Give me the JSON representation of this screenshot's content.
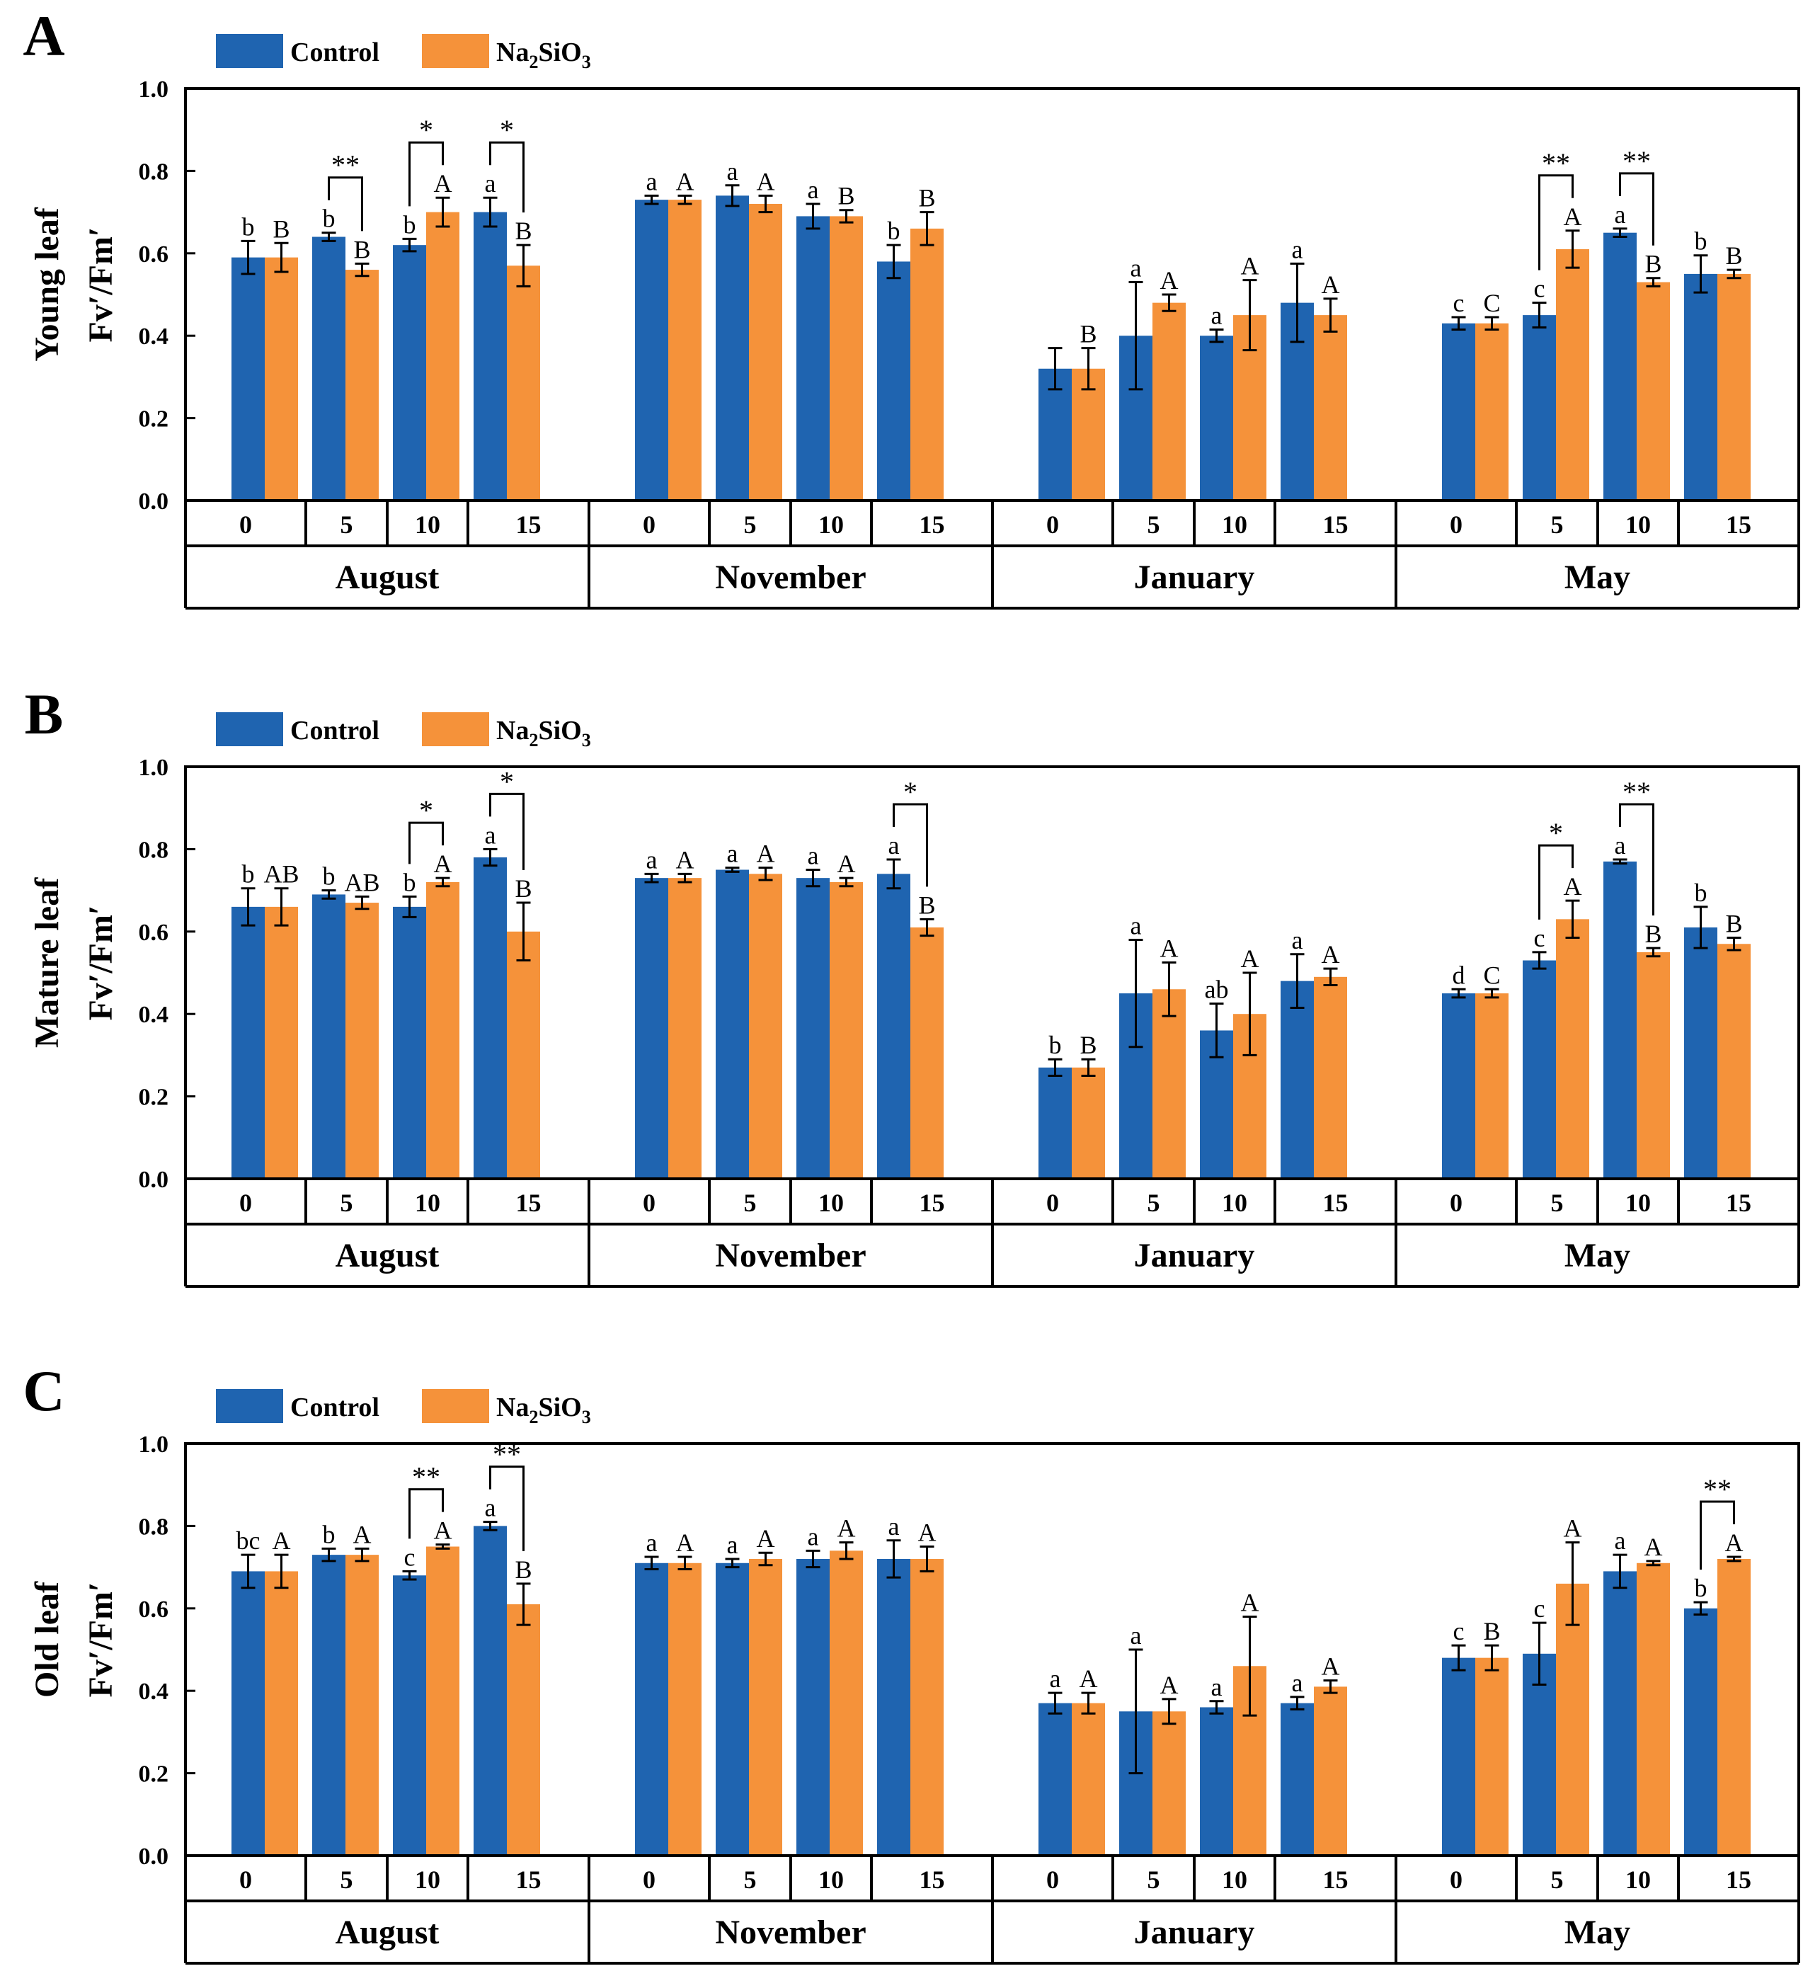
{
  "legend": {
    "control": "Control",
    "treatment_base": "Na",
    "treatment_sub1": "2",
    "treatment_mid": "SiO",
    "treatment_sub2": "3"
  },
  "colors": {
    "control": "#1F64B0",
    "treatment": "#F5923A"
  },
  "months": [
    "August",
    "November",
    "January",
    "May"
  ],
  "day_labels": [
    "0",
    "5",
    "10",
    "15"
  ],
  "panels": [
    {
      "letter": "A",
      "ylabel_top": "Young leaf",
      "ylabel_bottom": "Fv′/Fm′",
      "yticks": [
        "0.0",
        "0.2",
        "0.4",
        "0.6",
        "0.8",
        "1.0"
      ],
      "chart_data": {
        "type": "bar",
        "ylim": [
          0,
          1.0
        ],
        "series": [
          {
            "name": "Control",
            "values": [
              [
                0.59,
                0.64,
                0.62,
                0.7
              ],
              [
                0.73,
                0.74,
                0.69,
                0.58
              ],
              [
                0.32,
                0.4,
                0.4,
                0.48
              ],
              [
                0.43,
                0.45,
                0.65,
                0.55
              ]
            ],
            "errors": [
              [
                0.04,
                0.01,
                0.015,
                0.035
              ],
              [
                0.01,
                0.025,
                0.03,
                0.04
              ],
              [
                0.05,
                0.13,
                0.015,
                0.095
              ],
              [
                0.015,
                0.03,
                0.01,
                0.045
              ]
            ],
            "letters": [
              [
                "b",
                "b",
                "b",
                "a"
              ],
              [
                "a",
                "a",
                "a",
                "b"
              ],
              [
                "",
                "a",
                "a",
                "a"
              ],
              [
                "c",
                "c",
                "a",
                "b"
              ]
            ]
          },
          {
            "name": "Na2SiO3",
            "values": [
              [
                0.59,
                0.56,
                0.7,
                0.57
              ],
              [
                0.73,
                0.72,
                0.69,
                0.66
              ],
              [
                0.32,
                0.48,
                0.45,
                0.45
              ],
              [
                0.43,
                0.61,
                0.53,
                0.55
              ]
            ],
            "errors": [
              [
                0.035,
                0.015,
                0.035,
                0.05
              ],
              [
                0.01,
                0.02,
                0.015,
                0.04
              ],
              [
                0.05,
                0.02,
                0.085,
                0.04
              ],
              [
                0.015,
                0.045,
                0.01,
                0.01
              ]
            ],
            "letters": [
              [
                "B",
                "B",
                "A",
                "B"
              ],
              [
                "A",
                "A",
                "B",
                "B"
              ],
              [
                "B",
                "A",
                "A",
                "A"
              ],
              [
                "C",
                "A",
                "B",
                "B"
              ]
            ]
          }
        ],
        "significance": [
          {
            "month": 0,
            "day": 1,
            "label": "**"
          },
          {
            "month": 0,
            "day": 2,
            "label": "*"
          },
          {
            "month": 0,
            "day": 3,
            "label": "*"
          },
          {
            "month": 3,
            "day": 1,
            "label": "**"
          },
          {
            "month": 3,
            "day": 2,
            "label": "**"
          }
        ]
      }
    },
    {
      "letter": "B",
      "ylabel_top": "Mature leaf",
      "ylabel_bottom": "Fv′/Fm′",
      "yticks": [
        "0.0",
        "0.2",
        "0.4",
        "0.6",
        "0.8",
        "1.0"
      ],
      "chart_data": {
        "type": "bar",
        "ylim": [
          0,
          1.0
        ],
        "series": [
          {
            "name": "Control",
            "values": [
              [
                0.66,
                0.69,
                0.66,
                0.78
              ],
              [
                0.73,
                0.75,
                0.73,
                0.74
              ],
              [
                0.27,
                0.45,
                0.36,
                0.48
              ],
              [
                0.45,
                0.53,
                0.77,
                0.61
              ]
            ],
            "errors": [
              [
                0.045,
                0.01,
                0.025,
                0.02
              ],
              [
                0.01,
                0.005,
                0.02,
                0.035
              ],
              [
                0.02,
                0.13,
                0.065,
                0.065
              ],
              [
                0.01,
                0.02,
                0.005,
                0.05
              ]
            ],
            "letters": [
              [
                "b",
                "b",
                "b",
                "a"
              ],
              [
                "a",
                "a",
                "a",
                "a"
              ],
              [
                "b",
                "a",
                "ab",
                "a"
              ],
              [
                "d",
                "c",
                "a",
                "b"
              ]
            ]
          },
          {
            "name": "Na2SiO3",
            "values": [
              [
                0.66,
                0.67,
                0.72,
                0.6
              ],
              [
                0.73,
                0.74,
                0.72,
                0.61
              ],
              [
                0.27,
                0.46,
                0.4,
                0.49
              ],
              [
                0.45,
                0.63,
                0.55,
                0.57
              ]
            ],
            "errors": [
              [
                0.045,
                0.015,
                0.01,
                0.07
              ],
              [
                0.01,
                0.015,
                0.01,
                0.02
              ],
              [
                0.02,
                0.065,
                0.1,
                0.02
              ],
              [
                0.01,
                0.045,
                0.01,
                0.015
              ]
            ],
            "letters": [
              [
                "AB",
                "AB",
                "A",
                "B"
              ],
              [
                "A",
                "A",
                "A",
                "B"
              ],
              [
                "B",
                "A",
                "A",
                "A"
              ],
              [
                "C",
                "A",
                "B",
                "B"
              ]
            ]
          }
        ],
        "significance": [
          {
            "month": 0,
            "day": 2,
            "label": "*"
          },
          {
            "month": 0,
            "day": 3,
            "label": "*"
          },
          {
            "month": 1,
            "day": 3,
            "label": "*"
          },
          {
            "month": 3,
            "day": 1,
            "label": "*"
          },
          {
            "month": 3,
            "day": 2,
            "label": "**"
          }
        ]
      }
    },
    {
      "letter": "C",
      "ylabel_top": "Old leaf",
      "ylabel_bottom": "Fv′/Fm′",
      "yticks": [
        "0.0",
        "0.2",
        "0.4",
        "0.6",
        "0.8",
        "1.0"
      ],
      "chart_data": {
        "type": "bar",
        "ylim": [
          0,
          1.0
        ],
        "series": [
          {
            "name": "Control",
            "values": [
              [
                0.69,
                0.73,
                0.68,
                0.8
              ],
              [
                0.71,
                0.71,
                0.72,
                0.72
              ],
              [
                0.37,
                0.35,
                0.36,
                0.37
              ],
              [
                0.48,
                0.49,
                0.69,
                0.6
              ]
            ],
            "errors": [
              [
                0.04,
                0.015,
                0.01,
                0.01
              ],
              [
                0.015,
                0.01,
                0.02,
                0.045
              ],
              [
                0.025,
                0.15,
                0.015,
                0.015
              ],
              [
                0.03,
                0.075,
                0.04,
                0.015
              ]
            ],
            "letters": [
              [
                "bc",
                "b",
                "c",
                "a"
              ],
              [
                "a",
                "a",
                "a",
                "a"
              ],
              [
                "a",
                "a",
                "a",
                "a"
              ],
              [
                "c",
                "c",
                "a",
                "b"
              ]
            ]
          },
          {
            "name": "Na2SiO3",
            "values": [
              [
                0.69,
                0.73,
                0.75,
                0.61
              ],
              [
                0.71,
                0.72,
                0.74,
                0.72
              ],
              [
                0.37,
                0.35,
                0.46,
                0.41
              ],
              [
                0.48,
                0.66,
                0.71,
                0.72
              ]
            ],
            "errors": [
              [
                0.04,
                0.015,
                0.005,
                0.05
              ],
              [
                0.015,
                0.015,
                0.02,
                0.03
              ],
              [
                0.025,
                0.03,
                0.12,
                0.015
              ],
              [
                0.03,
                0.1,
                0.005,
                0.005
              ]
            ],
            "letters": [
              [
                "A",
                "A",
                "A",
                "B"
              ],
              [
                "A",
                "A",
                "A",
                "A"
              ],
              [
                "A",
                "A",
                "A",
                "A"
              ],
              [
                "B",
                "A",
                "A",
                "A"
              ]
            ]
          }
        ],
        "significance": [
          {
            "month": 0,
            "day": 2,
            "label": "**"
          },
          {
            "month": 0,
            "day": 3,
            "label": "**"
          },
          {
            "month": 3,
            "day": 3,
            "label": "**"
          }
        ]
      }
    }
  ]
}
